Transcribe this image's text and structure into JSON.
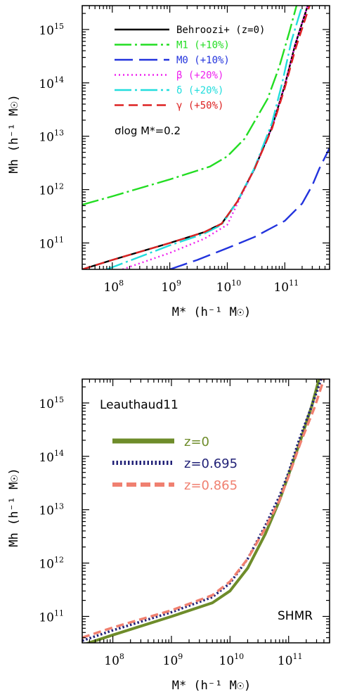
{
  "chart_data": [
    {
      "type": "line",
      "xlabel": "M* (h⁻¹ M☉)",
      "ylabel": "Mh (h⁻¹ M☉)",
      "x_scale": "log",
      "y_scale": "log",
      "xlim": [
        30000000.0,
        600000000000.0
      ],
      "ylim": [
        32000000000.0,
        2800000000000000.0
      ],
      "x_ticks": [
        "10^8",
        "10^9",
        "10^10",
        "10^11"
      ],
      "y_ticks": [
        "10^11",
        "10^12",
        "10^13",
        "10^14",
        "10^15"
      ],
      "annotation": "σlog M*=0.2",
      "legend_position": "top-left",
      "series": [
        {
          "name": "Behroozi+ (z=0)",
          "color": "#000000",
          "dash": "solid",
          "x": [
            30000000.0,
            100000000.0,
            1000000000.0,
            4000000000.0,
            8000000000.0,
            15000000000.0,
            30000000000.0,
            60000000000.0,
            100000000000.0,
            150000000000.0,
            250000000000.0
          ],
          "y": [
            32000000000.0,
            48000000000.0,
            100000000000.0,
            160000000000.0,
            230000000000.0,
            600000000000.0,
            2500000000000.0,
            15000000000000.0,
            90000000000000.0,
            500000000000000.0,
            2800000000000000.0
          ]
        },
        {
          "name": "M1 (+10%)",
          "color": "#22dd22",
          "dash": "dashdot",
          "x": [
            30000000.0,
            100000000.0,
            1000000000.0,
            5000000000.0,
            10000000000.0,
            20000000000.0,
            50000000000.0,
            80000000000.0,
            120000000000.0,
            160000000000.0
          ],
          "y": [
            520000000000.0,
            750000000000.0,
            1550000000000.0,
            2700000000000.0,
            4200000000000.0,
            9000000000000.0,
            50000000000000.0,
            200000000000000.0,
            900000000000000.0,
            2800000000000000.0
          ]
        },
        {
          "name": "M0 (+10%)",
          "color": "#2233dd",
          "dash": "longdash",
          "x": [
            1000000000.0,
            3000000000.0,
            10000000000.0,
            30000000000.0,
            100000000000.0,
            200000000000.0,
            300000000000.0,
            400000000000.0,
            600000000000.0
          ],
          "y": [
            32000000000.0,
            48000000000.0,
            80000000000.0,
            130000000000.0,
            260000000000.0,
            550000000000.0,
            1200000000000.0,
            2500000000000.0,
            6000000000000.0
          ]
        },
        {
          "name": "β (+20%)",
          "color": "#ee22ee",
          "dash": "dotted",
          "x": [
            150000000.0,
            1000000000.0,
            4000000000.0,
            10000000000.0,
            15000000000.0,
            30000000000.0,
            60000000000.0,
            100000000000.0,
            150000000000.0,
            250000000000.0
          ],
          "y": [
            32000000000.0,
            65000000000.0,
            120000000000.0,
            220000000000.0,
            550000000000.0,
            2500000000000.0,
            15000000000000.0,
            90000000000000.0,
            500000000000000.0,
            2800000000000000.0
          ]
        },
        {
          "name": "δ (+20%)",
          "color": "#22dddd",
          "dash": "dashdot",
          "x": [
            80000000.0,
            1000000000.0,
            4000000000.0,
            8000000000.0,
            15000000000.0,
            30000000000.0,
            60000000000.0,
            90000000000.0,
            130000000000.0,
            200000000000.0
          ],
          "y": [
            32000000000.0,
            90000000000.0,
            150000000000.0,
            220000000000.0,
            600000000000.0,
            2600000000000.0,
            18000000000000.0,
            100000000000000.0,
            600000000000000.0,
            2800000000000000.0
          ]
        },
        {
          "name": "γ (+50%)",
          "color": "#dd2222",
          "dash": "dashed",
          "x": [
            30000000.0,
            100000000.0,
            1000000000.0,
            4000000000.0,
            8000000000.0,
            15000000000.0,
            30000000000.0,
            60000000000.0,
            100000000000.0,
            150000000000.0,
            270000000000.0
          ],
          "y": [
            32000000000.0,
            48000000000.0,
            100000000000.0,
            160000000000.0,
            230000000000.0,
            600000000000.0,
            2500000000000.0,
            14000000000000.0,
            80000000000000.0,
            400000000000000.0,
            2800000000000000.0
          ]
        }
      ]
    },
    {
      "type": "line",
      "xlabel": "M* (h⁻¹ M☉)",
      "ylabel": "Mh (h⁻¹ M☉)",
      "x_scale": "log",
      "y_scale": "log",
      "xlim": [
        30000000.0,
        500000000000.0
      ],
      "ylim": [
        32000000000.0,
        2800000000000000.0
      ],
      "x_ticks": [
        "10^8",
        "10^9",
        "10^10",
        "10^11"
      ],
      "y_ticks": [
        "10^11",
        "10^12",
        "10^13",
        "10^14",
        "10^15"
      ],
      "title": "Leauthaud11",
      "annotation": "SHMR",
      "legend_position": "left",
      "series": [
        {
          "name": "z=0",
          "color": "#6e8c2a",
          "dash": "solid",
          "x": [
            30000000.0,
            100000000.0,
            1000000000.0,
            5000000000.0,
            10000000000.0,
            20000000000.0,
            40000000000.0,
            70000000000.0,
            100000000000.0,
            160000000000.0,
            250000000000.0,
            330000000000.0
          ],
          "y": [
            29000000000.0,
            45000000000.0,
            100000000000.0,
            180000000000.0,
            300000000000.0,
            800000000000.0,
            3500000000000.0,
            15000000000000.0,
            45000000000000.0,
            200000000000000.0,
            900000000000000.0,
            2800000000000000.0
          ]
        },
        {
          "name": "z=0.695",
          "color": "#222277",
          "dash": "dotted",
          "x": [
            30000000.0,
            100000000.0,
            1000000000.0,
            5000000000.0,
            10000000000.0,
            20000000000.0,
            40000000000.0,
            70000000000.0,
            100000000000.0,
            150000000000.0,
            250000000000.0,
            360000000000.0
          ],
          "y": [
            35000000000.0,
            55000000000.0,
            120000000000.0,
            230000000000.0,
            420000000000.0,
            1200000000000.0,
            5000000000000.0,
            18000000000000.0,
            50000000000000.0,
            200000000000000.0,
            900000000000000.0,
            2800000000000000.0
          ]
        },
        {
          "name": "z=0.865",
          "color": "#f08070",
          "dash": "dashed",
          "x": [
            30000000.0,
            100000000.0,
            1000000000.0,
            5000000000.0,
            10000000000.0,
            20000000000.0,
            40000000000.0,
            70000000000.0,
            100000000000.0,
            160000000000.0,
            280000000000.0,
            400000000000.0
          ],
          "y": [
            40000000000.0,
            62000000000.0,
            130000000000.0,
            250000000000.0,
            450000000000.0,
            1200000000000.0,
            4500000000000.0,
            15000000000000.0,
            42000000000000.0,
            180000000000000.0,
            850000000000000.0,
            2800000000000000.0
          ]
        }
      ]
    }
  ]
}
